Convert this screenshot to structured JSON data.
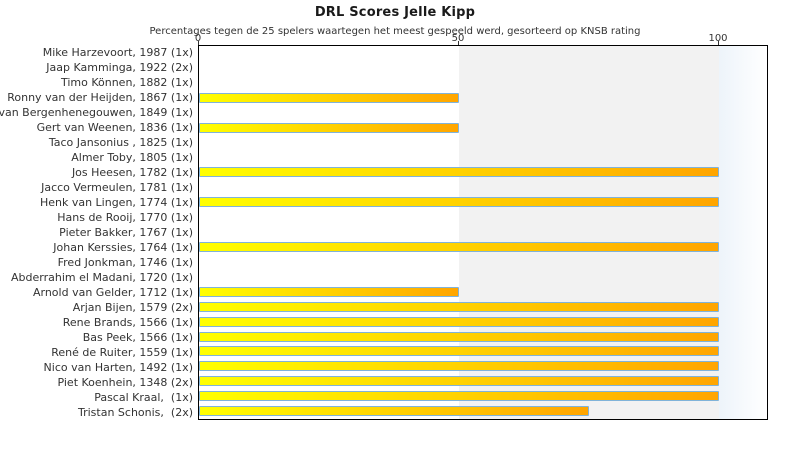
{
  "chart_data": {
    "type": "bar",
    "orientation": "horizontal",
    "title": "DRL Scores Jelle Kipp",
    "subtitle": "Percentages tegen de 25 spelers waartegen het meest gespeeld werd, gesorteerd op KNSB rating",
    "categories": [
      "Mike Harzevoort, 1987 (1x)",
      "Jaap Kamminga, 1922 (2x)",
      "Timo Können, 1882 (1x)",
      "Ronny van der Heijden, 1867 (1x)",
      "van Bergenhenegouwen, 1849 (1x)",
      "Gert van Weenen, 1836 (1x)",
      "Taco Jansonius , 1825 (1x)",
      "Almer Toby, 1805 (1x)",
      "Jos Heesen, 1782 (1x)",
      "Jacco Vermeulen, 1781 (1x)",
      "Henk van Lingen, 1774 (1x)",
      "Hans de Rooij, 1770 (1x)",
      "Pieter Bakker, 1767 (1x)",
      "Johan Kerssies, 1764 (1x)",
      "Fred Jonkman, 1746 (1x)",
      "Abderrahim el Madani, 1720 (1x)",
      "Arnold van Gelder, 1712 (1x)",
      "Arjan Bijen, 1579 (2x)",
      "Rene Brands, 1566 (1x)",
      "Bas Peek, 1566 (1x)",
      "René de Ruiter, 1559 (1x)",
      "Nico van Harten, 1492 (1x)",
      "Piet Koenhein, 1348 (2x)",
      "Pascal Kraal,  (1x)",
      "Tristan Schonis,  (2x)"
    ],
    "values": [
      0,
      0,
      0,
      50,
      0,
      50,
      0,
      0,
      100,
      0,
      100,
      0,
      0,
      100,
      0,
      0,
      50,
      100,
      100,
      100,
      100,
      100,
      100,
      100,
      75
    ],
    "xlabel": "",
    "ylabel": "",
    "xlim": [
      0,
      110
    ],
    "xticks": [
      0,
      50,
      100
    ],
    "grid": false,
    "legend": "none",
    "shaded_regions": [
      {
        "from": 50,
        "to": 100,
        "style": "flat-gray"
      },
      {
        "from": 100,
        "to": 110,
        "style": "blue-white-fade"
      }
    ],
    "colors": {
      "bar_gradient_start": "#ffff00",
      "bar_gradient_end": "#ffa500",
      "bar_border": "#80b3d9",
      "plot_border": "#000000",
      "band_mid": "#f2f2f2",
      "band_right_start": "#edf4fa",
      "band_right_end": "#ffffff",
      "text": "#333333"
    }
  }
}
